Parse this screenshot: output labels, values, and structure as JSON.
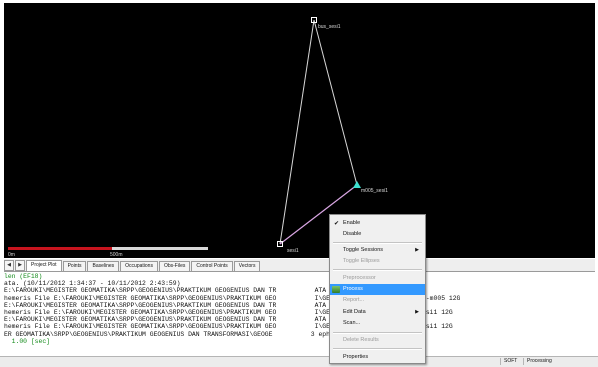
{
  "plot": {
    "stations": [
      {
        "label": "bus_sesi1"
      },
      {
        "label": "m005_sesi1"
      },
      {
        "label": "sesi1"
      }
    ],
    "scale": {
      "start_label": "0m",
      "end_label": "500m"
    },
    "colors": {
      "baseline": "#d7d7d7",
      "vector": "#d9a6e3",
      "station_marker": "#ffffff",
      "selected_marker": "#3ee0d0"
    }
  },
  "tabs": {
    "nav_left": "◀",
    "nav_right": "▶",
    "items": [
      {
        "label": "Project Plot",
        "active": true
      },
      {
        "label": "Points"
      },
      {
        "label": "Baselines"
      },
      {
        "label": "Occupations"
      },
      {
        "label": "Obs-Files"
      },
      {
        "label": "Control Points"
      },
      {
        "label": "Vectors"
      }
    ]
  },
  "log": {
    "lines": [
      {
        "text": "len (EF18)",
        "green": true
      },
      {
        "text": "ata. (10/11/2012 1:34:37 - 10/11/2012 2:43:59)",
        "green": false
      },
      {
        "text": "E:\\FAROUKI\\MEGISTER GEOMATIKA\\SRPP\\GEOGENIUS\\PRAKTIKUM GEOGENIUS DAN TR          ATA RINEX\\shift1-m005 12G",
        "green": false
      },
      {
        "text": "hemeris File E:\\FAROUKI\\MEGISTER GEOMATIKA\\SRPP\\GEOGENIUS\\PRAKTIKUM GEO          I\\GEOGENIUS\\DATA RINEX\\shift1-m005 12G",
        "green": false
      },
      {
        "text": "E:\\FAROUKI\\MEGISTER GEOMATIKA\\SRPP\\GEOGENIUS\\PRAKTIKUM GEOGENIUS DAN TR          ATA RINEX\\bus-sesi1 12G",
        "green": false
      },
      {
        "text": "hemeris File E:\\FAROUKI\\MEGISTER GEOMATIKA\\SRPP\\GEOGENIUS\\PRAKTIKUM GEO          I\\GEOGENIUS\\DATA RINEX\\bus-sesi1 12G",
        "green": false
      },
      {
        "text": "E:\\FAROUKI\\MEGISTER GEOMATIKA\\SRPP\\GEOGENIUS\\PRAKTIKUM GEOGENIUS DAN TR          ATA RINEX\\bm8-sesi1 12G",
        "green": false
      },
      {
        "text": "hemeris File E:\\FAROUKI\\MEGISTER GEOMATIKA\\SRPP\\GEOGENIUS\\PRAKTIKUM GEO          I\\GEOGENIUS\\DATA RINEX\\bm8-sesi1 12G",
        "green": false
      },
      {
        "text": "ER GEOMATIKA\\SRPP\\GEOGENIUS\\PRAKTIKUM GEOGENIUS DAN TRANSFORMASI\\GEOGE          3 eph Ok",
        "green": false
      },
      {
        "text": "  1.00 [sec]",
        "green": true
      }
    ]
  },
  "status": {
    "soft": "SOFT",
    "state": "Processing"
  },
  "context_menu": {
    "items": [
      {
        "label": "Enable",
        "checked": true
      },
      {
        "label": "Disable"
      },
      {
        "separator": true
      },
      {
        "label": "Toggle Sessions",
        "submenu": true
      },
      {
        "label": "Toggle Ellipses",
        "disabled": true
      },
      {
        "separator": true
      },
      {
        "label": "Preprocessor",
        "disabled": true
      },
      {
        "label": "Process",
        "highlight": true,
        "icon": "process-icon"
      },
      {
        "label": "Report...",
        "disabled": true
      },
      {
        "label": "Edit Data",
        "submenu": true
      },
      {
        "label": "Scan..."
      },
      {
        "separator": true
      },
      {
        "label": "Delete Results",
        "disabled": true
      },
      {
        "separator": true
      },
      {
        "label": "Properties"
      }
    ]
  }
}
